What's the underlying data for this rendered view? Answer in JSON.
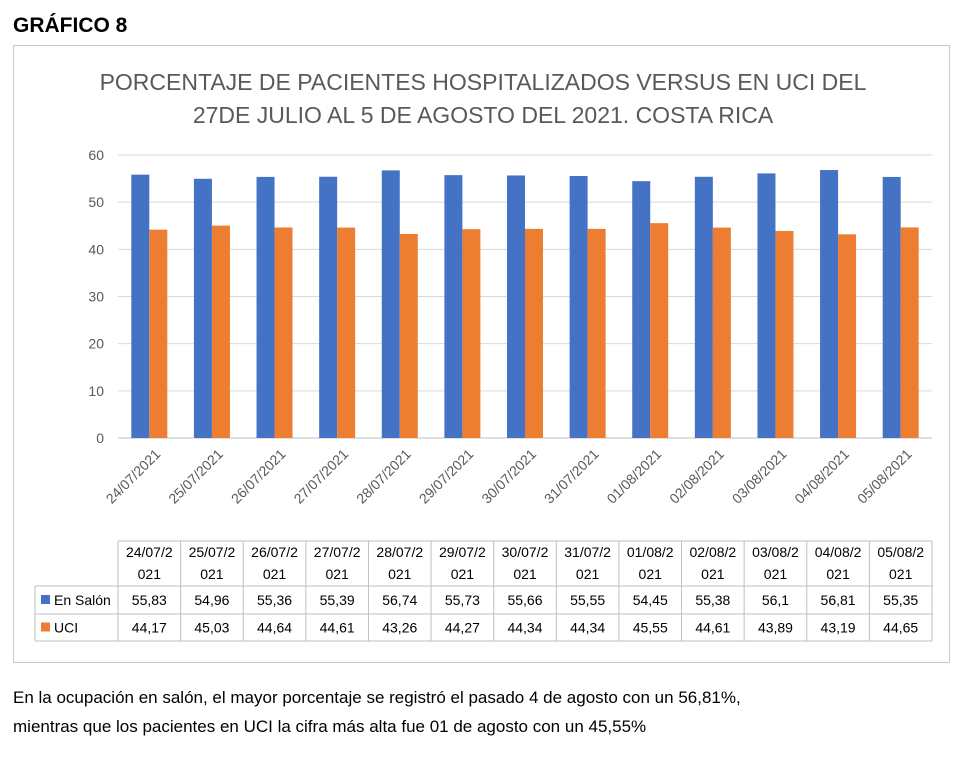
{
  "figure_label": "GRÁFICO 8",
  "caption": {
    "line1": "En la ocupación en salón, el mayor porcentaje se registró el pasado 4 de agosto con un 56,81%,",
    "line2": "mientras que los pacientes en UCI la cifra más alta fue 01 de agosto con un 45,55%"
  },
  "colors": {
    "salon": "#4472c4",
    "uci": "#ed7d31",
    "grid": "#d9d9d9",
    "axis_text": "#595959"
  },
  "chart_data": {
    "type": "bar",
    "title_lines": [
      "PORCENTAJE DE PACIENTES HOSPITALIZADOS VERSUS EN UCI DEL",
      "27DE JULIO AL 5 DE AGOSTO DEL 2021. COSTA RICA"
    ],
    "categories": [
      "24/07/2021",
      "25/07/2021",
      "26/07/2021",
      "27/07/2021",
      "28/07/2021",
      "29/07/2021",
      "30/07/2021",
      "31/07/2021",
      "01/08/2021",
      "02/08/2021",
      "03/08/2021",
      "04/08/2021",
      "05/08/2021"
    ],
    "table_header_lines": [
      [
        "24/07/2",
        "021"
      ],
      [
        "25/07/2",
        "021"
      ],
      [
        "26/07/2",
        "021"
      ],
      [
        "27/07/2",
        "021"
      ],
      [
        "28/07/2",
        "021"
      ],
      [
        "29/07/2",
        "021"
      ],
      [
        "30/07/2",
        "021"
      ],
      [
        "31/07/2",
        "021"
      ],
      [
        "01/08/2",
        "021"
      ],
      [
        "02/08/2",
        "021"
      ],
      [
        "03/08/2",
        "021"
      ],
      [
        "04/08/2",
        "021"
      ],
      [
        "05/08/2",
        "021"
      ]
    ],
    "series": [
      {
        "name": "En Salón",
        "values": [
          55.83,
          54.96,
          55.36,
          55.39,
          56.74,
          55.73,
          55.66,
          55.55,
          54.45,
          55.38,
          56.1,
          56.81,
          55.35
        ],
        "labels": [
          "55,83",
          "54,96",
          "55,36",
          "55,39",
          "56,74",
          "55,73",
          "55,66",
          "55,55",
          "54,45",
          "55,38",
          "56,1",
          "56,81",
          "55,35"
        ]
      },
      {
        "name": "UCI",
        "values": [
          44.17,
          45.03,
          44.64,
          44.61,
          43.26,
          44.27,
          44.34,
          44.34,
          45.55,
          44.61,
          43.89,
          43.19,
          44.65
        ],
        "labels": [
          "44,17",
          "45,03",
          "44,64",
          "44,61",
          "43,26",
          "44,27",
          "44,34",
          "44,34",
          "45,55",
          "44,61",
          "43,89",
          "43,19",
          "44,65"
        ]
      }
    ],
    "ylim": [
      0,
      60
    ],
    "yticks": [
      0,
      10,
      20,
      30,
      40,
      50,
      60
    ],
    "grid": true,
    "legend": "data-table"
  }
}
